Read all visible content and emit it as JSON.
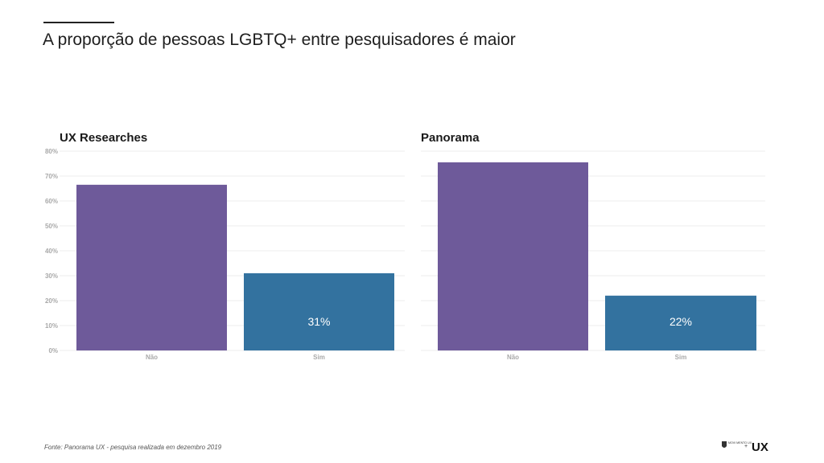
{
  "title": "A proporção de pessoas LGBTQ+ entre pesquisadores é maior",
  "source": "Fonte: Panorama UX - pesquisa realizada em dezembro 2019",
  "logo": {
    "small_text": "MOVI MENTO UX",
    "plus": "+",
    "mark": "UX"
  },
  "colors": {
    "nao": "#6e5a9a",
    "sim": "#33729f",
    "grid": "#ececec",
    "tick": "#a9a9a9"
  },
  "chart_data": [
    {
      "type": "bar",
      "title": "UX Researches",
      "categories": [
        "Não",
        "Sim"
      ],
      "values": [
        66.5,
        31
      ],
      "data_labels": [
        "",
        "31%"
      ],
      "yticks": [
        "0%",
        "10%",
        "20%",
        "30%",
        "40%",
        "50%",
        "60%",
        "70%",
        "80%"
      ],
      "ylim": [
        0,
        80
      ],
      "grid": true
    },
    {
      "type": "bar",
      "title": "Panorama",
      "categories": [
        "Não",
        "Sim"
      ],
      "values": [
        75.5,
        22
      ],
      "data_labels": [
        "",
        "22%"
      ],
      "yticks": [],
      "ylim": [
        0,
        80
      ],
      "grid": true
    }
  ]
}
